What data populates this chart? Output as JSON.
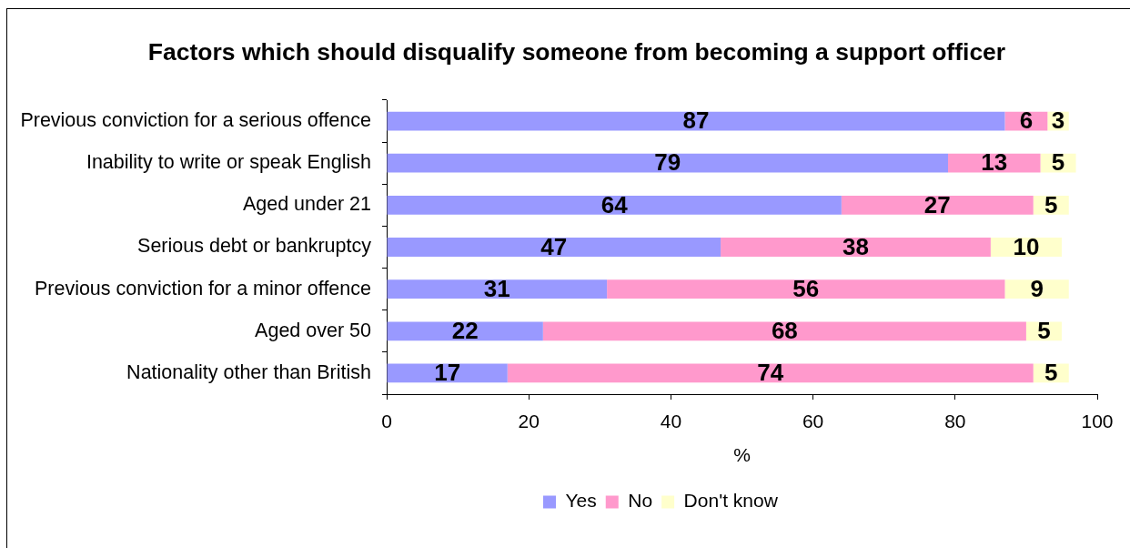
{
  "chart_data": {
    "type": "bar",
    "title": "Factors which should disqualify someone from becoming a support officer",
    "xlabel": "%",
    "orientation": "horizontal",
    "stacked": true,
    "categories": [
      "Previous conviction for a serious offence",
      "Inability to write or speak English",
      "Aged under 21",
      "Serious debt or bankruptcy",
      "Previous conviction for a minor offence",
      "Aged over 50",
      "Nationality other than British"
    ],
    "series": [
      {
        "name": "Yes",
        "color": "#9999ff",
        "values": [
          87,
          79,
          64,
          47,
          31,
          22,
          17
        ]
      },
      {
        "name": "No",
        "color": "#ff99cc",
        "values": [
          6,
          13,
          27,
          38,
          56,
          68,
          74
        ]
      },
      {
        "name": "Don't know",
        "color": "#ffffcc",
        "values": [
          3,
          5,
          5,
          10,
          9,
          5,
          5
        ]
      }
    ],
    "xlim": [
      0,
      100
    ],
    "xticks": [
      0,
      20,
      40,
      60,
      80,
      100
    ],
    "data_labels": true,
    "legend": "bottom",
    "grid": false
  }
}
